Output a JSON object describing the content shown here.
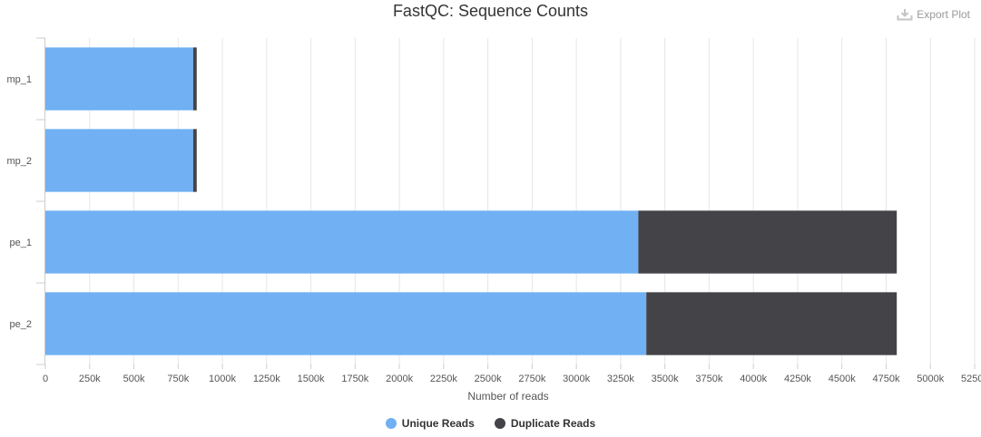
{
  "title": "FastQC: Sequence Counts",
  "export_label": "Export Plot",
  "colors": {
    "unique": "#70b0f3",
    "duplicate": "#434348",
    "grid": "#e6e6e6",
    "axis": "#cccccc"
  },
  "chart_data": {
    "type": "bar",
    "orientation": "horizontal",
    "stacked": true,
    "title": "FastQC: Sequence Counts",
    "xlabel": "Number of reads",
    "ylabel": "",
    "categories": [
      "mp_1",
      "mp_2",
      "pe_1",
      "pe_2"
    ],
    "series": [
      {
        "name": "Unique Reads",
        "color": "#70b0f3",
        "values": [
          835000,
          835000,
          3350000,
          3395000
        ]
      },
      {
        "name": "Duplicate Reads",
        "color": "#434348",
        "values": [
          20000,
          20000,
          1460000,
          1415000
        ]
      }
    ],
    "xlim": [
      0,
      5250000
    ],
    "tick_step": 250000,
    "tick_labels": [
      "0",
      "250k",
      "500k",
      "750k",
      "1000k",
      "1250k",
      "1500k",
      "1750k",
      "2000k",
      "2250k",
      "2500k",
      "2750k",
      "3000k",
      "3250k",
      "3500k",
      "3750k",
      "4000k",
      "4250k",
      "4500k",
      "4750k",
      "5000k",
      "5250k"
    ],
    "grid": true,
    "legend_position": "bottom"
  }
}
